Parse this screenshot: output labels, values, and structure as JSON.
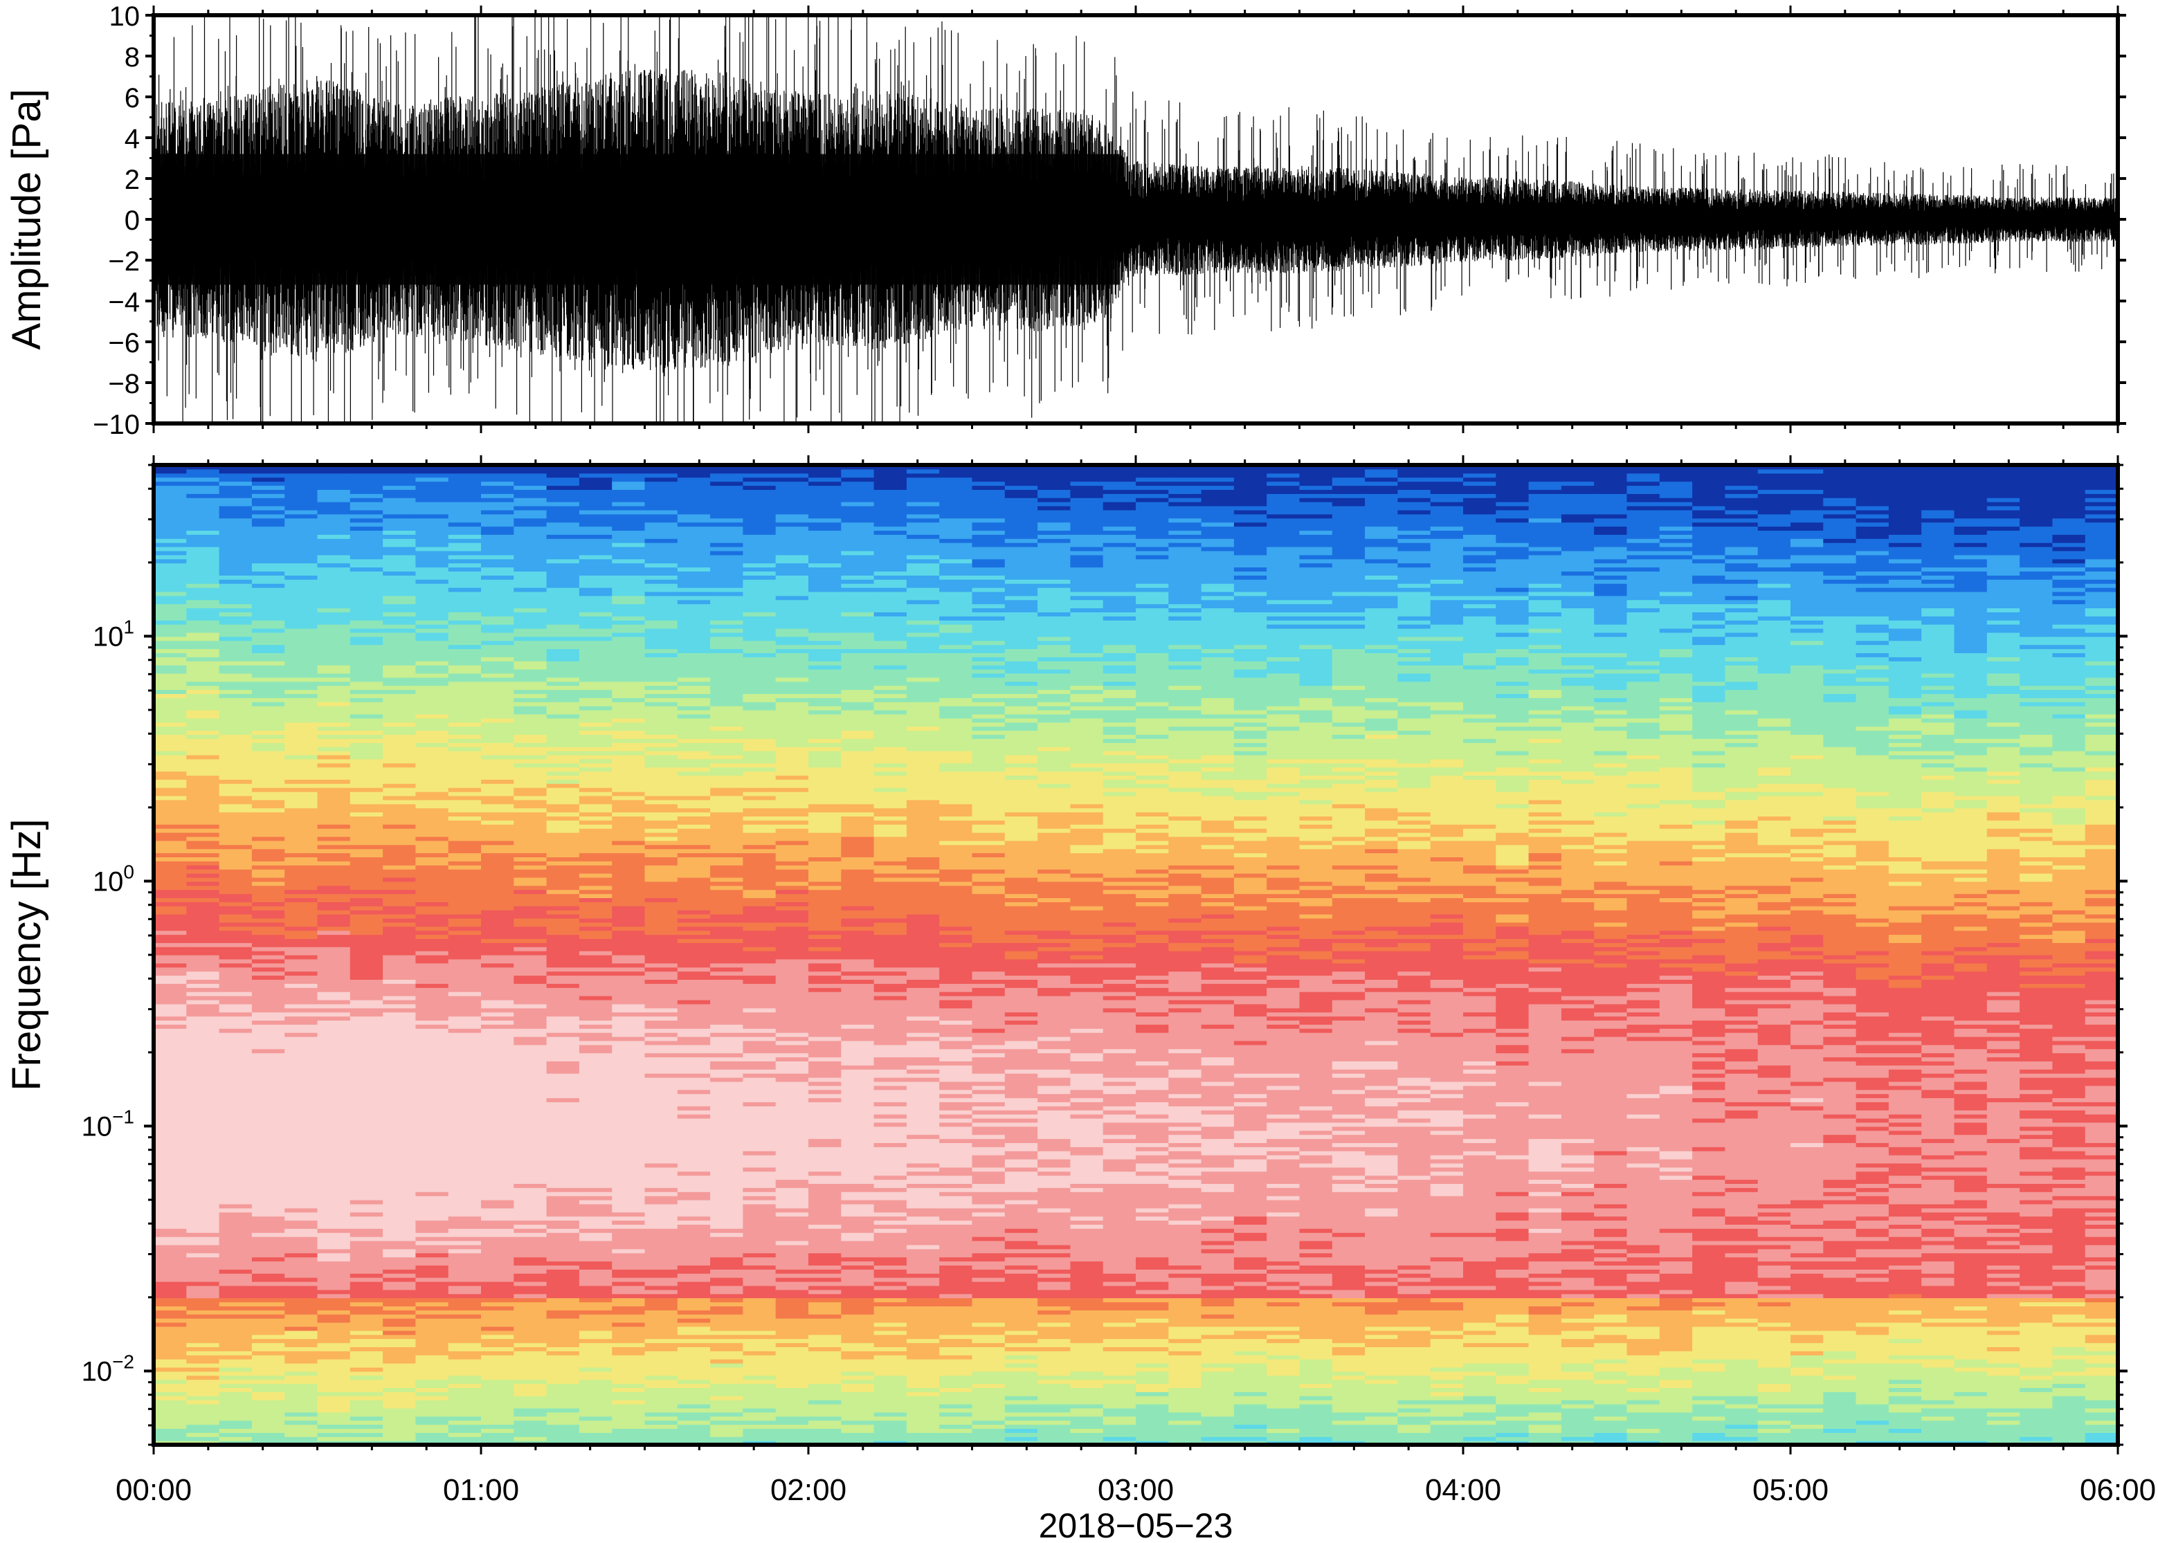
{
  "chart_data": [
    {
      "type": "line",
      "id": "waveform",
      "ylabel": "Amplitude [Pa]",
      "ylim": [
        -10,
        10
      ],
      "ytick_values": [
        -10,
        -8,
        -6,
        -4,
        -2,
        0,
        2,
        4,
        6,
        8,
        10
      ],
      "ytick_labels": [
        "−10",
        "−8",
        "−6",
        "−4",
        "−2",
        "0",
        "2",
        "4",
        "6",
        "8",
        "10"
      ],
      "xlim": [
        "2018-05-23 00:00",
        "2018-05-23 06:00"
      ],
      "envelope": {
        "x_hours": [
          0,
          0.25,
          0.5,
          0.75,
          1.0,
          1.25,
          1.5,
          1.75,
          2.0,
          2.25,
          2.5,
          2.75,
          2.9,
          3.0,
          3.25,
          3.5,
          3.75,
          4.0,
          4.25,
          4.5,
          4.75,
          5.0,
          5.25,
          5.5,
          5.75,
          6.0
        ],
        "amplitude_pa": [
          5.2,
          5.6,
          6.4,
          5.2,
          5.6,
          6.2,
          6.8,
          6.6,
          5.6,
          5.8,
          5.0,
          5.0,
          4.6,
          2.6,
          2.4,
          2.4,
          2.2,
          1.9,
          1.8,
          1.5,
          1.4,
          1.3,
          1.2,
          1.1,
          1.0,
          1.0
        ],
        "peak_pa": [
          9.5,
          10,
          10,
          9.0,
          10,
          10,
          10,
          10,
          10,
          9.5,
          8.5,
          9.0,
          8.5,
          5.5,
          5.0,
          5.0,
          4.5,
          4.0,
          3.8,
          3.5,
          3.0,
          3.0,
          2.8,
          2.5,
          2.5,
          2.2
        ]
      },
      "grid": false
    },
    {
      "type": "heatmap",
      "id": "spectrogram",
      "ylabel": "Frequency [Hz]",
      "yscale": "log",
      "ylim_hz": [
        0.005,
        50
      ],
      "ytick_values": [
        0.01,
        0.1,
        1,
        10
      ],
      "ytick_labels": [
        {
          "base": "10",
          "exp": "−2"
        },
        {
          "base": "10",
          "exp": "−1"
        },
        {
          "base": "10",
          "exp": "0"
        },
        {
          "base": "10",
          "exp": "1"
        }
      ],
      "xlabel": "2018−05−23",
      "xtick_values": [
        0,
        1,
        2,
        3,
        4,
        5,
        6
      ],
      "xtick_labels": [
        "00:00",
        "01:00",
        "02:00",
        "03:00",
        "04:00",
        "05:00",
        "06:00"
      ],
      "time_bins": 60,
      "colormap": [
        "#1033a8",
        "#1a6fe0",
        "#3aa7f0",
        "#5dd8e8",
        "#8ee6b8",
        "#c9ef90",
        "#f4e87a",
        "#fbb45a",
        "#f47a4a",
        "#f05a5a",
        "#f49a9a",
        "#fad0d0"
      ],
      "features": {
        "transition_freq_hz_start": 0.6,
        "transition_freq_hz_end": 0.35,
        "low_band_hz": 0.02,
        "high_freq_cutoff_hz": 46
      },
      "grid": false
    }
  ]
}
